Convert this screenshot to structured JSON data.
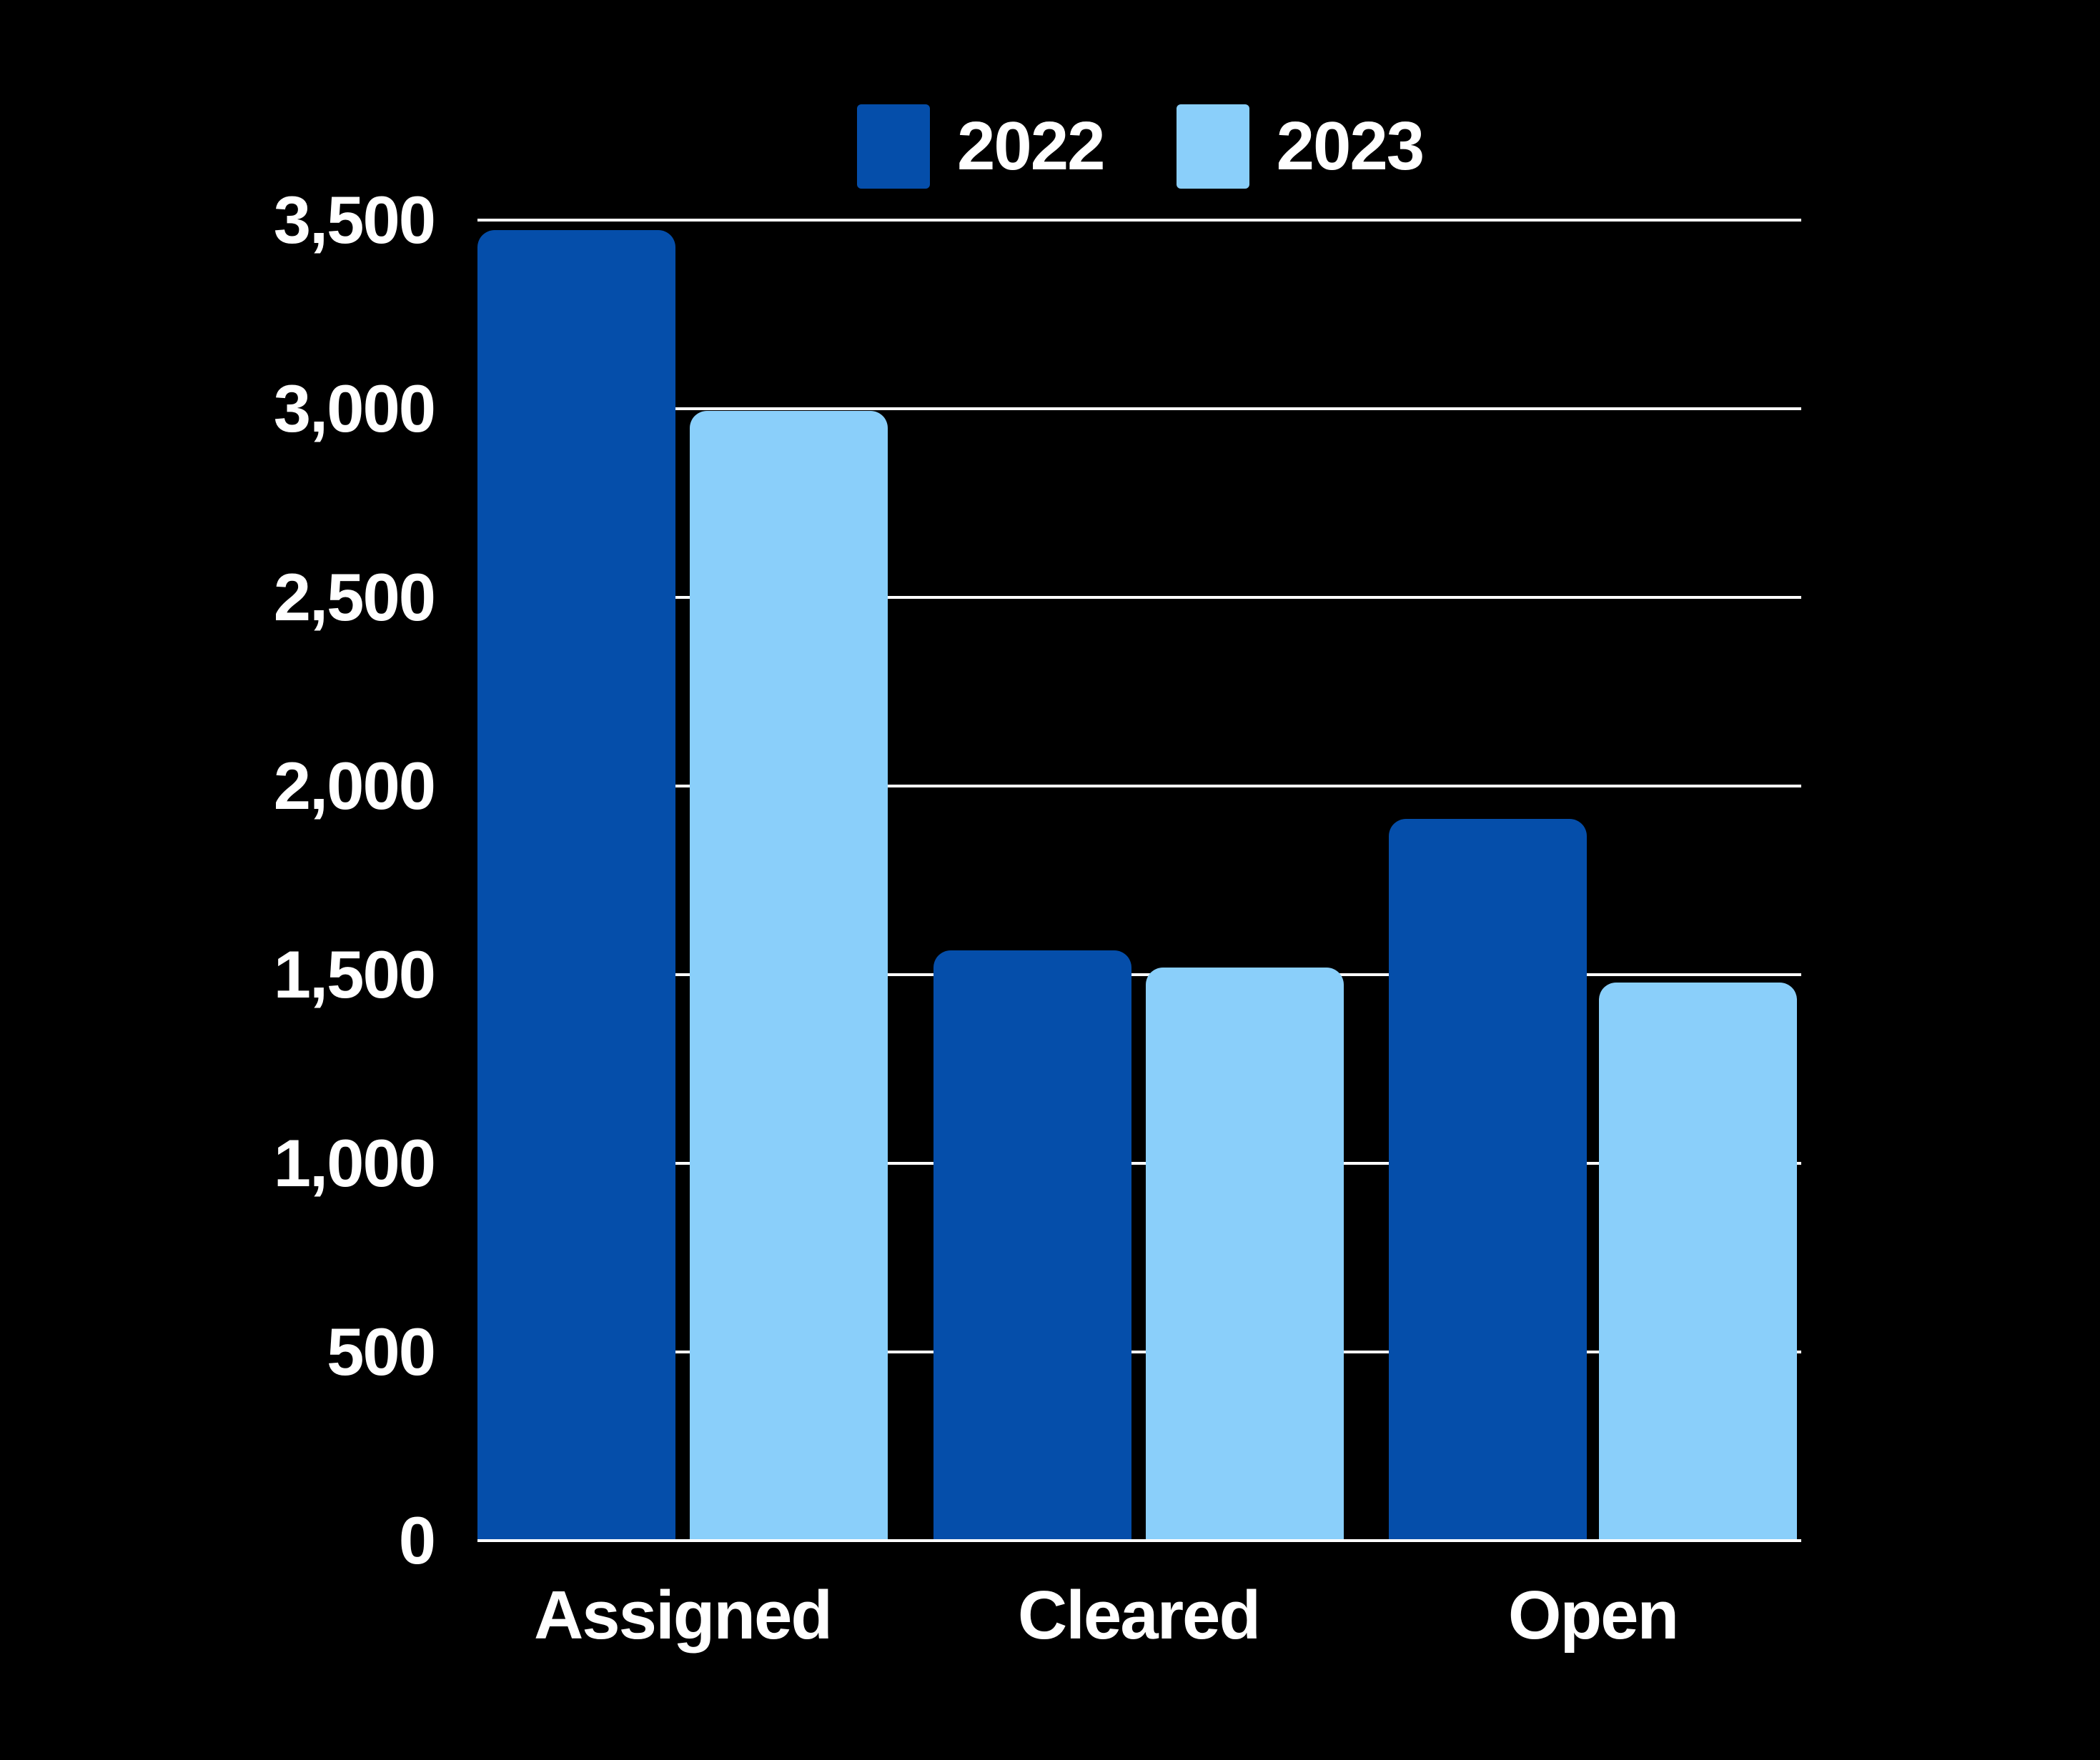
{
  "chart_data": {
    "type": "bar",
    "title": "",
    "categories": [
      "Assigned",
      "Cleared",
      "Open"
    ],
    "series": [
      {
        "name": "2022",
        "color": "#054EAA",
        "values": [
          3470,
          1560,
          1910
        ]
      },
      {
        "name": "2023",
        "color": "#8ACFFA",
        "values": [
          2990,
          1515,
          1475
        ]
      }
    ],
    "ylim": [
      0,
      3500
    ],
    "y_tick_step": 500,
    "y_tick_labels": [
      "0",
      "500",
      "1,000",
      "1,500",
      "2,000",
      "2,500",
      "3,000",
      "3,500"
    ],
    "grid": "horizontal",
    "legend_position": "top",
    "colors": {
      "background": "#000000",
      "gridline": "#FFFFFF",
      "text": "#FFFFFF"
    }
  }
}
